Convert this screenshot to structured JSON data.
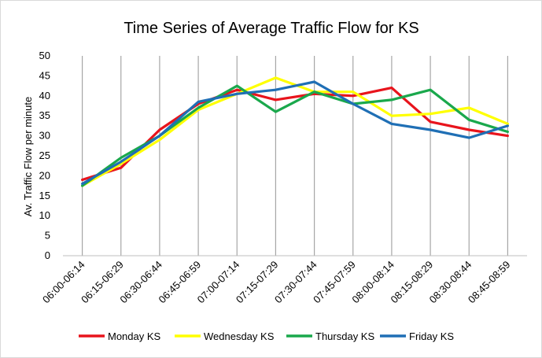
{
  "chart_data": {
    "type": "line",
    "title": "Time Series of Average Traffic Flow for KS",
    "xlabel": "",
    "ylabel": "Av. Traffic Flow per minute",
    "ylim": [
      0,
      50
    ],
    "yticks": [
      0,
      5,
      10,
      15,
      20,
      25,
      30,
      35,
      40,
      45,
      50
    ],
    "grid": "vertical lines at categories",
    "legend_position": "bottom",
    "categories": [
      "06:00-06:14",
      "06:15-06:29",
      "06:30-06:44",
      "06:45-06:59",
      "07:00-07:14",
      "07:15-07:29",
      "07:30-07:44",
      "07:45-07:59",
      "08:00-08:14",
      "08:15-08:29",
      "08:30-08:44",
      "08:45-08:59"
    ],
    "series": [
      {
        "name": "Monday KS",
        "color": "#e8141c",
        "values": [
          19,
          22,
          31.5,
          38,
          41.5,
          39,
          40.5,
          40,
          42,
          33.5,
          31.5,
          30
        ]
      },
      {
        "name": "Wednesday KS",
        "color": "#ffff00",
        "values": [
          17.5,
          23,
          29,
          36.5,
          40.5,
          44.5,
          41,
          41,
          35,
          35.5,
          37,
          33
        ]
      },
      {
        "name": "Thursday KS",
        "color": "#1aa84c",
        "values": [
          17.5,
          24.5,
          30,
          37,
          42.5,
          36,
          41,
          38,
          39,
          41.5,
          34,
          31
        ]
      },
      {
        "name": "Friday KS",
        "color": "#1f6fb5",
        "values": [
          18,
          23.5,
          30,
          38.5,
          40.5,
          41.5,
          43.5,
          38,
          33,
          31.5,
          29.5,
          32.5
        ]
      }
    ]
  }
}
